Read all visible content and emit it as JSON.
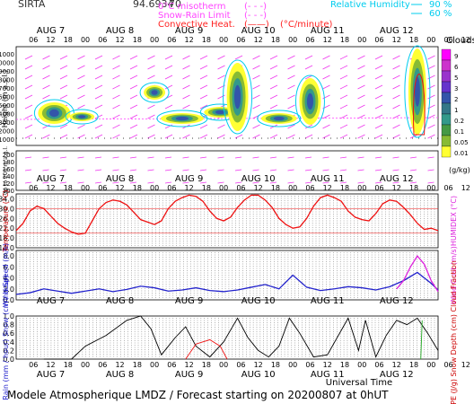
{
  "header": {
    "site": "SIRTA",
    "coord": "94.6934",
    "altitude_label": "70",
    "legend": [
      {
        "text": "0°C misotherm",
        "swatch": "(- - -)",
        "color": "#ff44ff"
      },
      {
        "text": "Snow-Rain Limit",
        "swatch": "(- - -)",
        "color": "#ff44ff"
      },
      {
        "text": "Convective Heat.",
        "swatch": "(——)",
        "unit": "(°C/minute)",
        "color": "#ff2222"
      }
    ],
    "rh_legend": [
      {
        "text": "Relative Humidity",
        "value": "90 %",
        "color": "#00ccee"
      },
      {
        "text": "",
        "value": "60 %",
        "color": "#00ccee"
      }
    ]
  },
  "days": [
    "AUG 7",
    "AUG 8",
    "AUG 9",
    "AUG 10",
    "AUG 11",
    "AUG 12"
  ],
  "hours": [
    "06",
    "12",
    "18",
    "00",
    "06",
    "12",
    "18",
    "00",
    "06",
    "12",
    "18",
    "00",
    "06",
    "12",
    "18",
    "00",
    "06",
    "12",
    "18",
    "00",
    "06",
    "12",
    "18",
    "00",
    "06",
    "12",
    "18"
  ],
  "cloud_panel": {
    "ylabel_main": "Height (m a.s.l.)",
    "ylabel_low": "Up to 200 m a.g.l.",
    "yticks_upper": [
      "11000",
      "10000",
      "9000",
      "8000",
      "7000",
      "6000",
      "5000",
      "4000",
      "3000",
      "2000",
      "1000"
    ],
    "yticks_lower": [
      "200",
      "180",
      "160",
      "140",
      "120",
      "100"
    ],
    "legend_title": "Clouds",
    "legend_unit": "(g/kg)",
    "legend_levels": [
      "9",
      "6",
      "5",
      "3",
      "2",
      "1",
      "0.2",
      "0.1",
      "0.05",
      "0.01"
    ],
    "legend_colors": [
      "#ff00ff",
      "#cc33cc",
      "#9933cc",
      "#6633cc",
      "#3355aa",
      "#337788",
      "#33998a",
      "#449944",
      "#88bb33",
      "#ffff33"
    ]
  },
  "chart_data": [
    {
      "type": "line",
      "title": "",
      "ylabel": "Temperature (°C)",
      "ylabel_right": "HUMIDEX (°C)",
      "ylim": [
        14,
        36
      ],
      "yticks": [
        "34.0",
        "30.0",
        "26.0",
        "22.0",
        "18.0",
        "14.0"
      ],
      "series": [
        {
          "color": "#ee1111",
          "x": [
            0,
            0.1,
            0.2,
            0.3,
            0.4,
            0.5,
            0.6,
            0.7,
            0.8,
            0.9,
            1.0,
            1.1,
            1.2,
            1.3,
            1.4,
            1.5,
            1.6,
            1.7,
            1.8,
            1.9,
            2.0,
            2.1,
            2.2,
            2.3,
            2.4,
            2.5,
            2.6,
            2.7,
            2.8,
            2.9,
            3.0,
            3.1,
            3.2,
            3.3,
            3.4,
            3.5,
            3.6,
            3.7,
            3.8,
            3.9,
            4.0,
            4.1,
            4.2,
            4.3,
            4.4,
            4.5,
            4.6,
            4.7,
            4.8,
            4.9,
            5.0,
            5.1,
            5.2,
            5.3,
            5.4,
            5.5,
            5.6,
            5.7,
            5.8,
            5.9,
            6.0,
            6.1
          ],
          "y": [
            21,
            24,
            29,
            31,
            30,
            27,
            24,
            22,
            20.5,
            19.5,
            20,
            25,
            30,
            32.5,
            33.5,
            33,
            31.5,
            28.5,
            25.5,
            24.5,
            23.5,
            25,
            30,
            33,
            34.5,
            35.5,
            35,
            33,
            29,
            26,
            25,
            26.5,
            30.5,
            33.5,
            35.5,
            35.5,
            33.5,
            30.5,
            26,
            23.5,
            22,
            22.5,
            26,
            31,
            34.5,
            35.5,
            34.5,
            33,
            29,
            26.5,
            25.5,
            25,
            28,
            32,
            33.5,
            33,
            30.5,
            27.5,
            24,
            21.5,
            22,
            21
          ]
        }
      ],
      "reference_lines": [
        30,
        20
      ]
    },
    {
      "type": "line",
      "title": "",
      "ylabel": "Wind Speed (m/s)",
      "ylabel_right": "Wind Gust (m/s)",
      "ylim": [
        0,
        9
      ],
      "yticks": [
        "8.0",
        "6.0",
        "4.0",
        "2.0",
        "0.0"
      ],
      "series": [
        {
          "name": "",
          "color": "#2222cc",
          "x": [
            0,
            0.2,
            0.4,
            0.6,
            0.8,
            1.0,
            1.2,
            1.4,
            1.6,
            1.8,
            2.0,
            2.2,
            2.4,
            2.6,
            2.8,
            3.0,
            3.2,
            3.4,
            3.6,
            3.8,
            4.0,
            4.2,
            4.4,
            4.6,
            4.8,
            5.0,
            5.2,
            5.4,
            5.6,
            5.8,
            6.0,
            6.1
          ],
          "y": [
            1.0,
            1.3,
            2.0,
            1.6,
            1.2,
            1.6,
            2.0,
            1.5,
            1.9,
            2.5,
            2.2,
            1.6,
            1.8,
            2.2,
            1.7,
            1.5,
            1.8,
            2.3,
            2.8,
            2.0,
            4.5,
            2.3,
            1.7,
            2.0,
            2.4,
            2.2,
            1.8,
            2.4,
            3.5,
            5.0,
            3.0,
            1.8
          ]
        },
        {
          "name": "",
          "color": "#dd22dd",
          "x": [
            5.5,
            5.6,
            5.7,
            5.8,
            5.9,
            6.0,
            6.1
          ],
          "y": [
            2.0,
            3.5,
            6.0,
            8.0,
            6.5,
            3.5,
            1.5
          ]
        }
      ]
    },
    {
      "type": "line",
      "title": "",
      "ylabel": "Rain (mm / hour) Snow (cm / hour)",
      "ylabel_right": "CAPE (J/g) Snow Depth (cm) Cloud Fraction",
      "ylim": [
        0,
        1
      ],
      "yticks": [
        "1.0",
        "0.8",
        "0.6",
        "0.4",
        "0.2",
        "0.0"
      ],
      "xlabel": "Universal Time",
      "series": [
        {
          "name": "",
          "color": "#000000",
          "x": [
            0.4,
            0.8,
            1.0,
            1.3,
            1.6,
            1.8,
            1.95,
            2.1,
            2.3,
            2.45,
            2.6,
            2.8,
            3.0,
            3.2,
            3.35,
            3.5,
            3.65,
            3.8,
            3.95,
            4.1,
            4.3,
            4.5,
            4.8,
            4.95,
            5.05,
            5.2,
            5.35,
            5.5,
            5.65,
            5.8,
            5.95,
            6.1
          ],
          "y": [
            0,
            0,
            0.3,
            0.55,
            0.9,
            1.0,
            0.7,
            0.1,
            0.5,
            0.75,
            0.3,
            0.05,
            0.4,
            0.95,
            0.5,
            0.2,
            0.05,
            0.3,
            0.95,
            0.6,
            0.05,
            0.1,
            0.95,
            0.2,
            0.9,
            0.05,
            0.55,
            0.9,
            0.8,
            0.95,
            0.6,
            0.2
          ]
        },
        {
          "name": "",
          "color": "#ee1111",
          "x": [
            2.45,
            2.6,
            2.8,
            2.95,
            3.05
          ],
          "y": [
            0,
            0.35,
            0.45,
            0.3,
            0
          ]
        },
        {
          "name": "",
          "color": "#22aa22",
          "x": [
            5.85,
            5.87
          ],
          "y": [
            0,
            0.9
          ]
        }
      ]
    }
  ],
  "xlabel": "Universal Time",
  "footer": "Modele Atmospherique LMDZ / Forecast starting on 20200807 at 0hUT"
}
